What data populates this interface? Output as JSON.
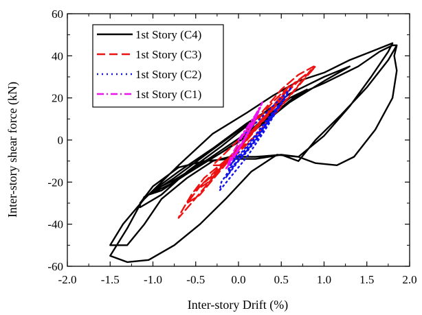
{
  "chart_data": {
    "type": "line",
    "xlabel": "Inter-story Drift (%)",
    "ylabel": "Inter-story shear force (kN)",
    "xlim": [
      -2.0,
      2.0
    ],
    "ylim": [
      -60,
      60
    ],
    "x_ticks": [
      -2.0,
      -1.5,
      -1.0,
      -0.5,
      0.0,
      0.5,
      1.0,
      1.5,
      2.0
    ],
    "x_tick_labels": [
      "-2.0",
      "-1.5",
      "-1.0",
      "-0.5",
      "0.0",
      "0.5",
      "1.0",
      "1.5",
      "2.0"
    ],
    "y_ticks": [
      -60,
      -40,
      -20,
      0,
      20,
      40,
      60
    ],
    "y_tick_labels": [
      "-60",
      "-40",
      "-20",
      "0",
      "20",
      "40",
      "60"
    ],
    "grid": false,
    "legend_position": "top-left",
    "series": [
      {
        "name": "1st Story (C4)",
        "color": "#000000",
        "dash": "solid",
        "points": [
          [
            0.0,
            0.0
          ],
          [
            0.3,
            10
          ],
          [
            0.6,
            20
          ],
          [
            1.0,
            27
          ],
          [
            1.4,
            35
          ],
          [
            1.65,
            42
          ],
          [
            1.8,
            45
          ],
          [
            1.85,
            45
          ],
          [
            1.75,
            38
          ],
          [
            1.5,
            25
          ],
          [
            1.2,
            12
          ],
          [
            0.9,
            0
          ],
          [
            0.7,
            -10
          ],
          [
            0.5,
            -7
          ],
          [
            0.2,
            -8
          ],
          [
            -0.1,
            -8
          ],
          [
            -0.3,
            -10
          ],
          [
            -0.6,
            -18
          ],
          [
            -0.9,
            -28
          ],
          [
            -1.1,
            -40
          ],
          [
            -1.3,
            -50
          ],
          [
            -1.5,
            -50
          ],
          [
            -1.35,
            -40
          ],
          [
            -1.1,
            -28
          ],
          [
            -0.7,
            -12
          ],
          [
            -0.3,
            3
          ],
          [
            0.1,
            13
          ],
          [
            0.4,
            21
          ],
          [
            0.7,
            28
          ],
          [
            1.0,
            32
          ],
          [
            1.3,
            38
          ],
          [
            1.55,
            42
          ],
          [
            1.8,
            46
          ],
          [
            1.75,
            42
          ],
          [
            1.55,
            30
          ],
          [
            1.3,
            16
          ],
          [
            1.0,
            2
          ],
          [
            0.7,
            -8
          ],
          [
            0.5,
            -7
          ],
          [
            0.2,
            -9
          ],
          [
            -0.1,
            -9
          ],
          [
            -0.4,
            -10
          ],
          [
            -0.7,
            -13
          ],
          [
            -1.0,
            -22
          ],
          [
            -1.15,
            -30
          ],
          [
            -1.15,
            -32
          ],
          [
            -0.9,
            -26
          ],
          [
            -0.6,
            -15
          ],
          [
            -0.2,
            -3
          ],
          [
            0.2,
            10
          ],
          [
            0.6,
            22
          ],
          [
            1.0,
            30
          ],
          [
            1.3,
            35
          ],
          [
            1.0,
            28
          ],
          [
            0.6,
            18
          ],
          [
            0.2,
            5
          ],
          [
            -0.2,
            -6
          ],
          [
            -0.6,
            -16
          ],
          [
            -0.9,
            -24
          ],
          [
            -1.05,
            -26
          ],
          [
            -0.75,
            -18
          ],
          [
            -0.35,
            -6
          ],
          [
            0.05,
            6
          ],
          [
            0.45,
            17
          ],
          [
            0.8,
            24
          ],
          [
            0.45,
            14
          ],
          [
            0.05,
            2
          ],
          [
            -0.35,
            -9
          ],
          [
            -0.75,
            -19
          ],
          [
            -1.0,
            -24
          ],
          [
            -0.7,
            -15
          ],
          [
            -0.3,
            -4
          ],
          [
            0.1,
            8
          ],
          [
            0.5,
            18
          ],
          [
            0.7,
            22
          ],
          [
            0.4,
            12
          ],
          [
            0.0,
            -1
          ],
          [
            -0.4,
            -11
          ],
          [
            -0.8,
            -21
          ],
          [
            -1.1,
            -27
          ],
          [
            -1.3,
            -42
          ],
          [
            -1.5,
            -55
          ],
          [
            -1.3,
            -58
          ],
          [
            -1.05,
            -57
          ],
          [
            -0.75,
            -50
          ],
          [
            -0.45,
            -40
          ],
          [
            -0.15,
            -28
          ],
          [
            0.15,
            -15
          ],
          [
            0.45,
            -7
          ],
          [
            0.7,
            -8
          ],
          [
            0.9,
            -11
          ],
          [
            1.15,
            -12
          ],
          [
            1.35,
            -8
          ],
          [
            1.6,
            5
          ],
          [
            1.8,
            20
          ],
          [
            1.85,
            33
          ],
          [
            1.82,
            40
          ],
          [
            1.85,
            45
          ]
        ]
      },
      {
        "name": "1st Story (C3)",
        "color": "#ee1111",
        "dash": "long-dash",
        "points": [
          [
            0.0,
            0.0
          ],
          [
            0.25,
            12
          ],
          [
            0.5,
            24
          ],
          [
            0.7,
            31
          ],
          [
            0.88,
            35
          ],
          [
            0.7,
            26
          ],
          [
            0.45,
            14
          ],
          [
            0.2,
            2
          ],
          [
            -0.1,
            -8
          ],
          [
            -0.4,
            -18
          ],
          [
            -0.55,
            -26
          ],
          [
            -0.68,
            -35
          ],
          [
            -0.7,
            -37
          ],
          [
            -0.55,
            -30
          ],
          [
            -0.3,
            -18
          ],
          [
            -0.05,
            -6
          ],
          [
            0.2,
            6
          ],
          [
            0.45,
            18
          ],
          [
            0.65,
            27
          ],
          [
            0.85,
            33
          ],
          [
            0.9,
            35
          ],
          [
            0.75,
            28
          ],
          [
            0.5,
            16
          ],
          [
            0.25,
            4
          ],
          [
            0.0,
            -6
          ],
          [
            -0.25,
            -15
          ],
          [
            -0.45,
            -22
          ],
          [
            -0.6,
            -30
          ],
          [
            -0.45,
            -26
          ],
          [
            -0.2,
            -14
          ],
          [
            0.05,
            -2
          ],
          [
            0.3,
            10
          ],
          [
            0.55,
            22
          ],
          [
            0.75,
            30
          ],
          [
            0.6,
            24
          ],
          [
            0.35,
            12
          ],
          [
            0.1,
            0
          ],
          [
            -0.15,
            -10
          ],
          [
            -0.35,
            -18
          ],
          [
            -0.5,
            -24
          ],
          [
            -0.35,
            -20
          ],
          [
            -0.1,
            -8
          ],
          [
            0.15,
            4
          ],
          [
            0.4,
            16
          ],
          [
            0.6,
            26
          ],
          [
            0.4,
            18
          ],
          [
            0.15,
            6
          ],
          [
            -0.1,
            -4
          ],
          [
            -0.3,
            -12
          ],
          [
            -0.2,
            -12
          ],
          [
            0.05,
            -2
          ],
          [
            0.3,
            10
          ],
          [
            0.5,
            20
          ]
        ]
      },
      {
        "name": "1st Story (C2)",
        "color": "#1111ee",
        "dash": "dotted",
        "points": [
          [
            0.0,
            0.0
          ],
          [
            0.2,
            8
          ],
          [
            0.4,
            16
          ],
          [
            0.55,
            22
          ],
          [
            0.62,
            25
          ],
          [
            0.5,
            18
          ],
          [
            0.3,
            6
          ],
          [
            0.1,
            -5
          ],
          [
            -0.1,
            -14
          ],
          [
            -0.2,
            -20
          ],
          [
            -0.22,
            -24
          ],
          [
            -0.1,
            -18
          ],
          [
            0.1,
            -8
          ],
          [
            0.3,
            4
          ],
          [
            0.45,
            14
          ],
          [
            0.58,
            22
          ],
          [
            0.4,
            12
          ],
          [
            0.2,
            0
          ],
          [
            0.0,
            -10
          ],
          [
            -0.15,
            -18
          ],
          [
            -0.05,
            -12
          ],
          [
            0.15,
            -2
          ],
          [
            0.35,
            10
          ],
          [
            0.5,
            18
          ],
          [
            0.3,
            8
          ],
          [
            0.1,
            -3
          ],
          [
            -0.1,
            -12
          ],
          [
            0.05,
            -6
          ],
          [
            0.25,
            4
          ],
          [
            0.42,
            12
          ],
          [
            0.25,
            2
          ],
          [
            0.05,
            -8
          ],
          [
            -0.12,
            -14
          ],
          [
            0.0,
            -6
          ]
        ]
      },
      {
        "name": "1st Story (C1)",
        "color": "#ee11ee",
        "dash": "dash-dot",
        "points": [
          [
            0.0,
            0.0
          ],
          [
            0.1,
            6
          ],
          [
            0.2,
            12
          ],
          [
            0.28,
            18
          ],
          [
            0.2,
            10
          ],
          [
            0.1,
            2
          ],
          [
            0.0,
            -5
          ],
          [
            -0.1,
            -10
          ],
          [
            -0.15,
            -14
          ],
          [
            -0.05,
            -8
          ],
          [
            0.05,
            -1
          ],
          [
            0.15,
            6
          ],
          [
            0.22,
            12
          ],
          [
            0.12,
            4
          ],
          [
            0.02,
            -3
          ],
          [
            -0.08,
            -9
          ],
          [
            0.0,
            -4
          ],
          [
            0.1,
            3
          ],
          [
            0.18,
            9
          ],
          [
            0.08,
            1
          ],
          [
            -0.02,
            -6
          ],
          [
            -0.12,
            -11
          ],
          [
            -0.05,
            -5
          ],
          [
            0.05,
            2
          ],
          [
            0.15,
            8
          ],
          [
            0.25,
            15
          ]
        ]
      }
    ]
  }
}
